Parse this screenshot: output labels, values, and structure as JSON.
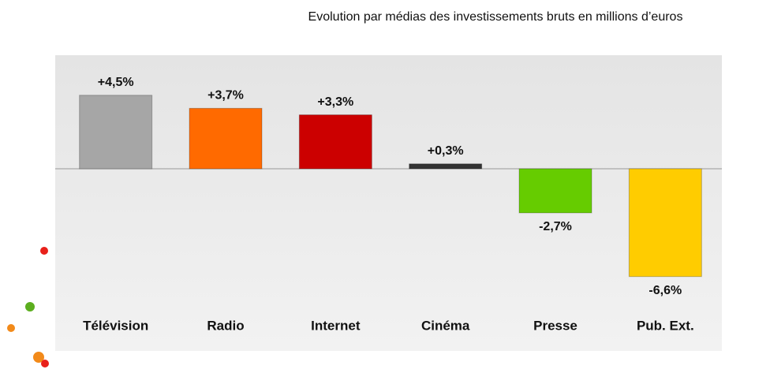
{
  "chart_data": {
    "type": "bar",
    "title": "Evolution par médias des investissements bruts en millions d’euros",
    "categories": [
      "Télévision",
      "Radio",
      "Internet",
      "Cinéma",
      "Presse",
      "Pub. Ext."
    ],
    "values": [
      4.5,
      3.7,
      3.3,
      0.3,
      -2.7,
      -6.6
    ],
    "value_labels": [
      "+4,5%",
      "+3,7%",
      "+3,3%",
      "+0,3%",
      "-2,7%",
      "-6,6%"
    ],
    "colors": [
      "#a6a6a6",
      "#ff6a00",
      "#cc0000",
      "#333333",
      "#66cc00",
      "#ffcc00"
    ],
    "ylim": [
      -7,
      7
    ]
  }
}
